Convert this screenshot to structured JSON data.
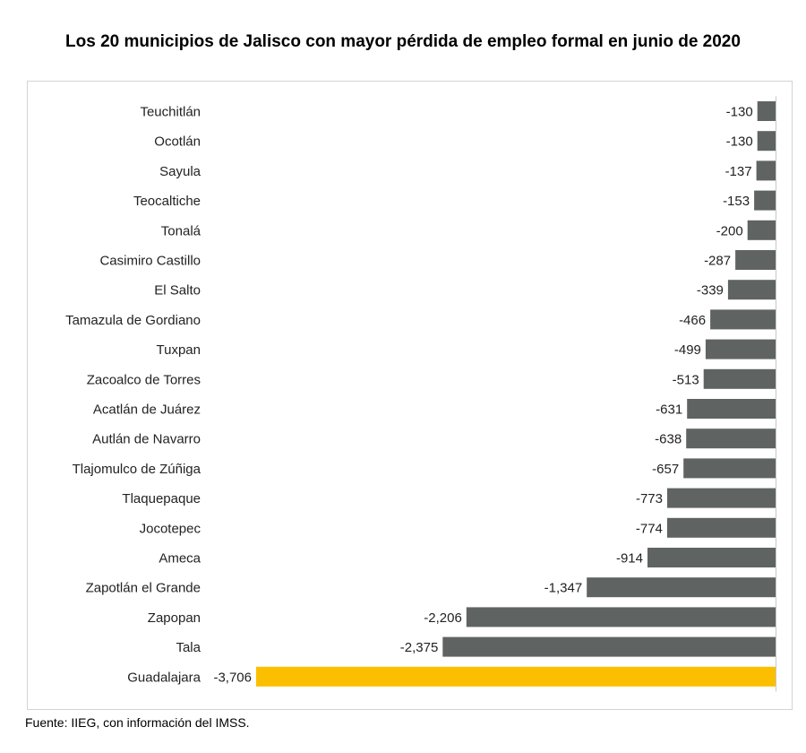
{
  "chart_data": {
    "type": "bar",
    "orientation": "horizontal",
    "title": "Los 20 municipios de Jalisco con mayor pérdida de empleo formal en junio de 2020",
    "categories": [
      "Teuchitlán",
      "Ocotlán",
      "Sayula",
      "Teocaltiche",
      "Tonalá",
      "Casimiro Castillo",
      "El Salto",
      "Tamazula de Gordiano",
      "Tuxpan",
      "Zacoalco de Torres",
      "Acatlán de Juárez",
      "Autlán de Navarro",
      "Tlajomulco de Zúñiga",
      "Tlaquepaque",
      "Jocotepec",
      "Ameca",
      "Zapotlán el Grande",
      "Zapopan",
      "Tala",
      "Guadalajara"
    ],
    "values": [
      -130,
      -130,
      -137,
      -153,
      -200,
      -287,
      -339,
      -466,
      -499,
      -513,
      -631,
      -638,
      -657,
      -773,
      -774,
      -914,
      -1347,
      -2206,
      -2375,
      -3706
    ],
    "value_labels": [
      "-130",
      "-130",
      "-137",
      "-153",
      "-200",
      "-287",
      "-339",
      "-466",
      "-499",
      "-513",
      "-631",
      "-638",
      "-657",
      "-773",
      "-774",
      "-914",
      "-1,347",
      "-2,206",
      "-2,375",
      "-3,706"
    ],
    "highlight_category": "Guadalajara",
    "xlim": [
      -3706,
      0
    ],
    "grid": false,
    "legend": "none"
  },
  "colors": {
    "bar": "#5f6462",
    "highlight": "#fbbf00",
    "axis": "#c8c8c8",
    "text": "#222222"
  },
  "source": "Fuente: IIEG, con información del IMSS."
}
